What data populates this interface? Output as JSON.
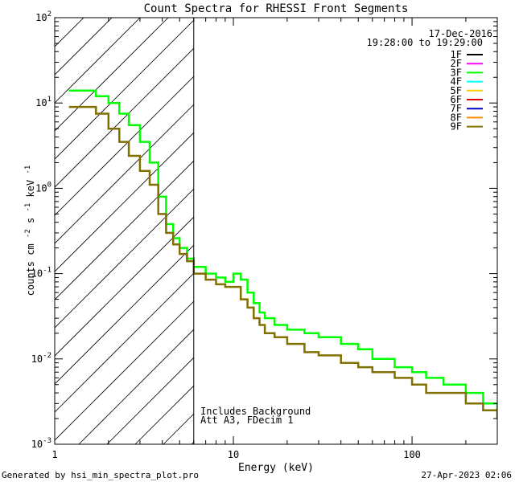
{
  "footer": {
    "generated_by": "Generated by hsi_min_spectra_plot.pro",
    "timestamp": "27-Apr-2023 02:06"
  },
  "chart_data": {
    "type": "line",
    "title": "Count Spectra for RHESSI Front Segments",
    "xlabel": "Energy (keV)",
    "ylabel": "counts cm",
    "ylabel_sup1": "-2",
    "ylabel_mid": " s",
    "ylabel_sup2": "-1",
    "ylabel_mid2": " keV",
    "ylabel_sup3": "-1",
    "xscale": "log",
    "yscale": "log",
    "xlim": [
      1,
      300
    ],
    "ylim": [
      0.001,
      100
    ],
    "x_tick_values": [
      1,
      10,
      100
    ],
    "x_tick_labels": [
      "1",
      "10",
      "100"
    ],
    "y_tick_values": [
      0.001,
      0.01,
      0.1,
      1,
      10,
      100
    ],
    "y_tick_bases": [
      "10",
      "10",
      "10",
      "10",
      "10",
      "10"
    ],
    "y_tick_exps": [
      "-3",
      "-2",
      "-1",
      "0",
      "1",
      "2"
    ],
    "date": "17-Dec-2016",
    "time_range": "19:28:00 to 19:29:00",
    "hatched_region": {
      "x_from": 1,
      "x_to": 6
    },
    "annotations": [
      "Includes Background",
      "Att A3, FDecim  1"
    ],
    "legend": [
      {
        "name": "1F",
        "color": "#000000"
      },
      {
        "name": "2F",
        "color": "#ff00ff"
      },
      {
        "name": "3F",
        "color": "#00ff00"
      },
      {
        "name": "4F",
        "color": "#00ffff"
      },
      {
        "name": "5F",
        "color": "#ffcc00"
      },
      {
        "name": "6F",
        "color": "#dd0000"
      },
      {
        "name": "7F",
        "color": "#0000cc"
      },
      {
        "name": "8F",
        "color": "#ff8800"
      },
      {
        "name": "9F",
        "color": "#807000"
      }
    ],
    "series": [
      {
        "name": "3F",
        "color": "#00ff00",
        "x": [
          1.2,
          1.5,
          1.7,
          2.0,
          2.3,
          2.6,
          3.0,
          3.4,
          3.8,
          4.2,
          4.6,
          5.0,
          5.5,
          6.0,
          7.0,
          8.0,
          9.0,
          10.0,
          11.0,
          12.0,
          13.0,
          14.0,
          15.0,
          17.0,
          20.0,
          25.0,
          30.0,
          40.0,
          50.0,
          60.0,
          80.0,
          100.0,
          120.0,
          150.0,
          200.0,
          250.0,
          300.0
        ],
        "y": [
          14,
          14,
          12,
          10,
          7.5,
          5.5,
          3.5,
          2.0,
          0.8,
          0.38,
          0.26,
          0.2,
          0.15,
          0.12,
          0.1,
          0.09,
          0.08,
          0.1,
          0.085,
          0.06,
          0.045,
          0.035,
          0.03,
          0.025,
          0.022,
          0.02,
          0.018,
          0.015,
          0.013,
          0.01,
          0.008,
          0.007,
          0.006,
          0.005,
          0.004,
          0.003,
          0.0025
        ]
      },
      {
        "name": "9F",
        "color": "#807000",
        "x": [
          1.2,
          1.5,
          1.7,
          2.0,
          2.3,
          2.6,
          3.0,
          3.4,
          3.8,
          4.2,
          4.6,
          5.0,
          5.5,
          6.0,
          7.0,
          8.0,
          9.0,
          10.0,
          11.0,
          12.0,
          13.0,
          14.0,
          15.0,
          17.0,
          20.0,
          25.0,
          30.0,
          40.0,
          50.0,
          60.0,
          80.0,
          100.0,
          120.0,
          150.0,
          200.0,
          250.0,
          300.0
        ],
        "y": [
          9,
          9,
          7.5,
          5.0,
          3.5,
          2.4,
          1.6,
          1.1,
          0.5,
          0.3,
          0.22,
          0.17,
          0.14,
          0.1,
          0.085,
          0.075,
          0.07,
          0.07,
          0.05,
          0.04,
          0.03,
          0.025,
          0.02,
          0.018,
          0.015,
          0.012,
          0.011,
          0.009,
          0.008,
          0.007,
          0.006,
          0.005,
          0.004,
          0.004,
          0.003,
          0.0025,
          0.002
        ]
      }
    ]
  }
}
